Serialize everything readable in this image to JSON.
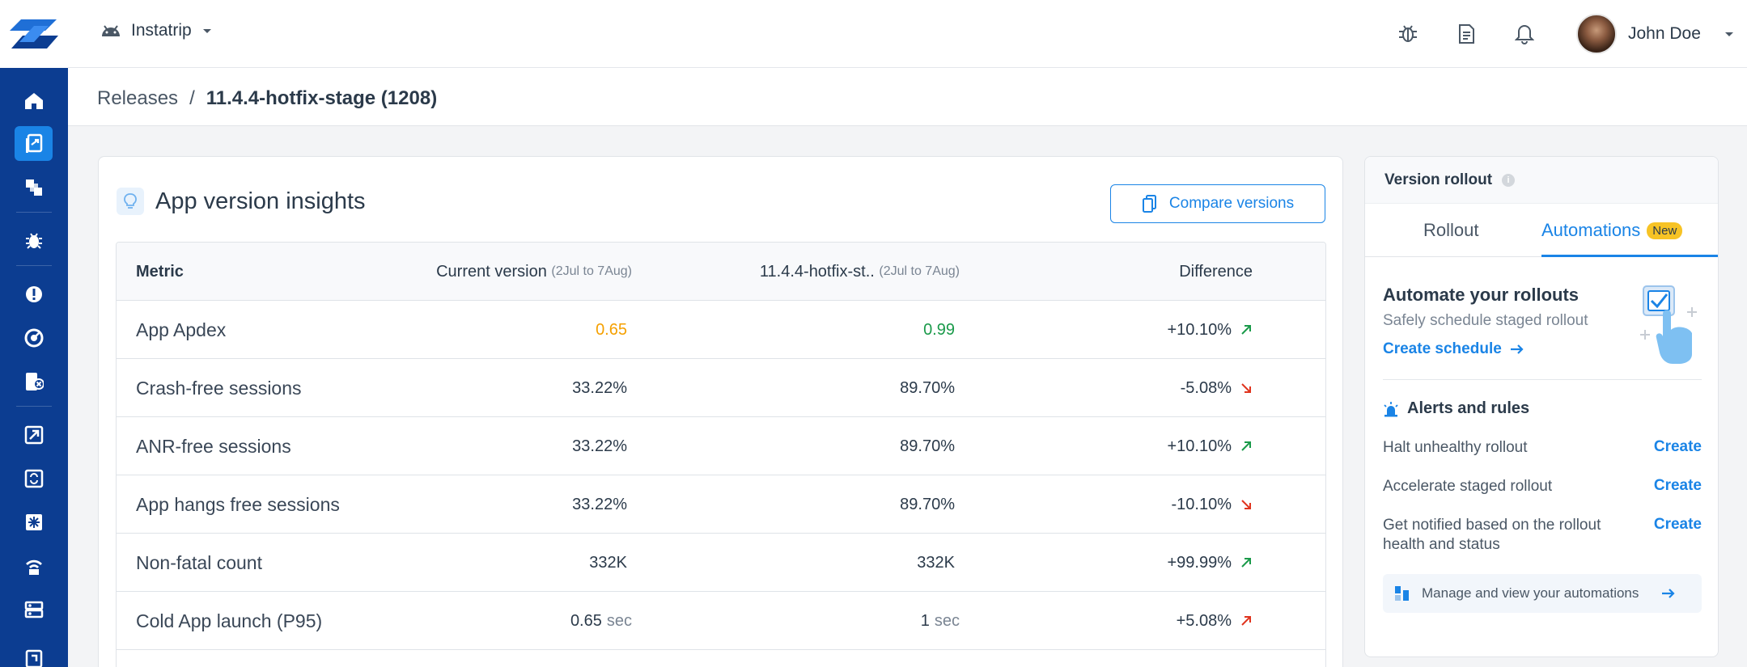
{
  "app": {
    "name": "Instatrip"
  },
  "user": {
    "name": "John Doe"
  },
  "breadcrumb": {
    "root": "Releases",
    "separator": "/",
    "current": "11.4.4-hotfix-stage (1208)"
  },
  "insights": {
    "title": "App version insights",
    "compare_label": "Compare versions",
    "columns": {
      "metric": "Metric",
      "current": "Current version",
      "current_range": "(2Jul to 7Aug)",
      "build": "11.4.4-hotfix-st..",
      "build_range": "(2Jul to 7Aug)",
      "difference": "Difference"
    },
    "rows": [
      {
        "metric": "App Apdex",
        "current": "0.65",
        "current_unit": "",
        "build": "0.99",
        "build_unit": "",
        "diff": "+10.10%",
        "trend": "up-good"
      },
      {
        "metric": "Crash-free sessions",
        "current": "33.22%",
        "current_unit": "",
        "build": "89.70%",
        "build_unit": "",
        "diff": "-5.08%",
        "trend": "down-bad"
      },
      {
        "metric": "ANR-free sessions",
        "current": "33.22%",
        "current_unit": "",
        "build": "89.70%",
        "build_unit": "",
        "diff": "+10.10%",
        "trend": "up-good"
      },
      {
        "metric": "App hangs free sessions",
        "current": "33.22%",
        "current_unit": "",
        "build": "89.70%",
        "build_unit": "",
        "diff": "-10.10%",
        "trend": "down-bad"
      },
      {
        "metric": "Non-fatal count",
        "current": "332K",
        "current_unit": "",
        "build": "332K",
        "build_unit": "",
        "diff": "+99.99%",
        "trend": "up-good"
      },
      {
        "metric": "Cold App launch (P95)",
        "current": "0.65",
        "current_unit": "sec",
        "build": "1",
        "build_unit": "sec",
        "diff": "+5.08%",
        "trend": "up-bad"
      }
    ]
  },
  "rollout_panel": {
    "title": "Version rollout",
    "tabs": {
      "rollout": "Rollout",
      "automations": "Automations",
      "badge": "New"
    },
    "automate_title": "Automate your rollouts",
    "automate_sub": "Safely schedule staged rollout",
    "create_schedule": "Create schedule",
    "alerts_title": "Alerts and rules",
    "rules": [
      {
        "label": "Halt unhealthy rollout",
        "action": "Create"
      },
      {
        "label": "Accelerate staged rollout",
        "action": "Create"
      },
      {
        "label": "Get notified based on the rollout health and status",
        "action": "Create"
      }
    ],
    "manage_label": "Manage and view your automations"
  },
  "colors": {
    "accent": "#1a84e6",
    "sidebar": "#0c3d91",
    "good": "#1a9a4a",
    "bad": "#e0341e",
    "warning": "#f5a000"
  }
}
